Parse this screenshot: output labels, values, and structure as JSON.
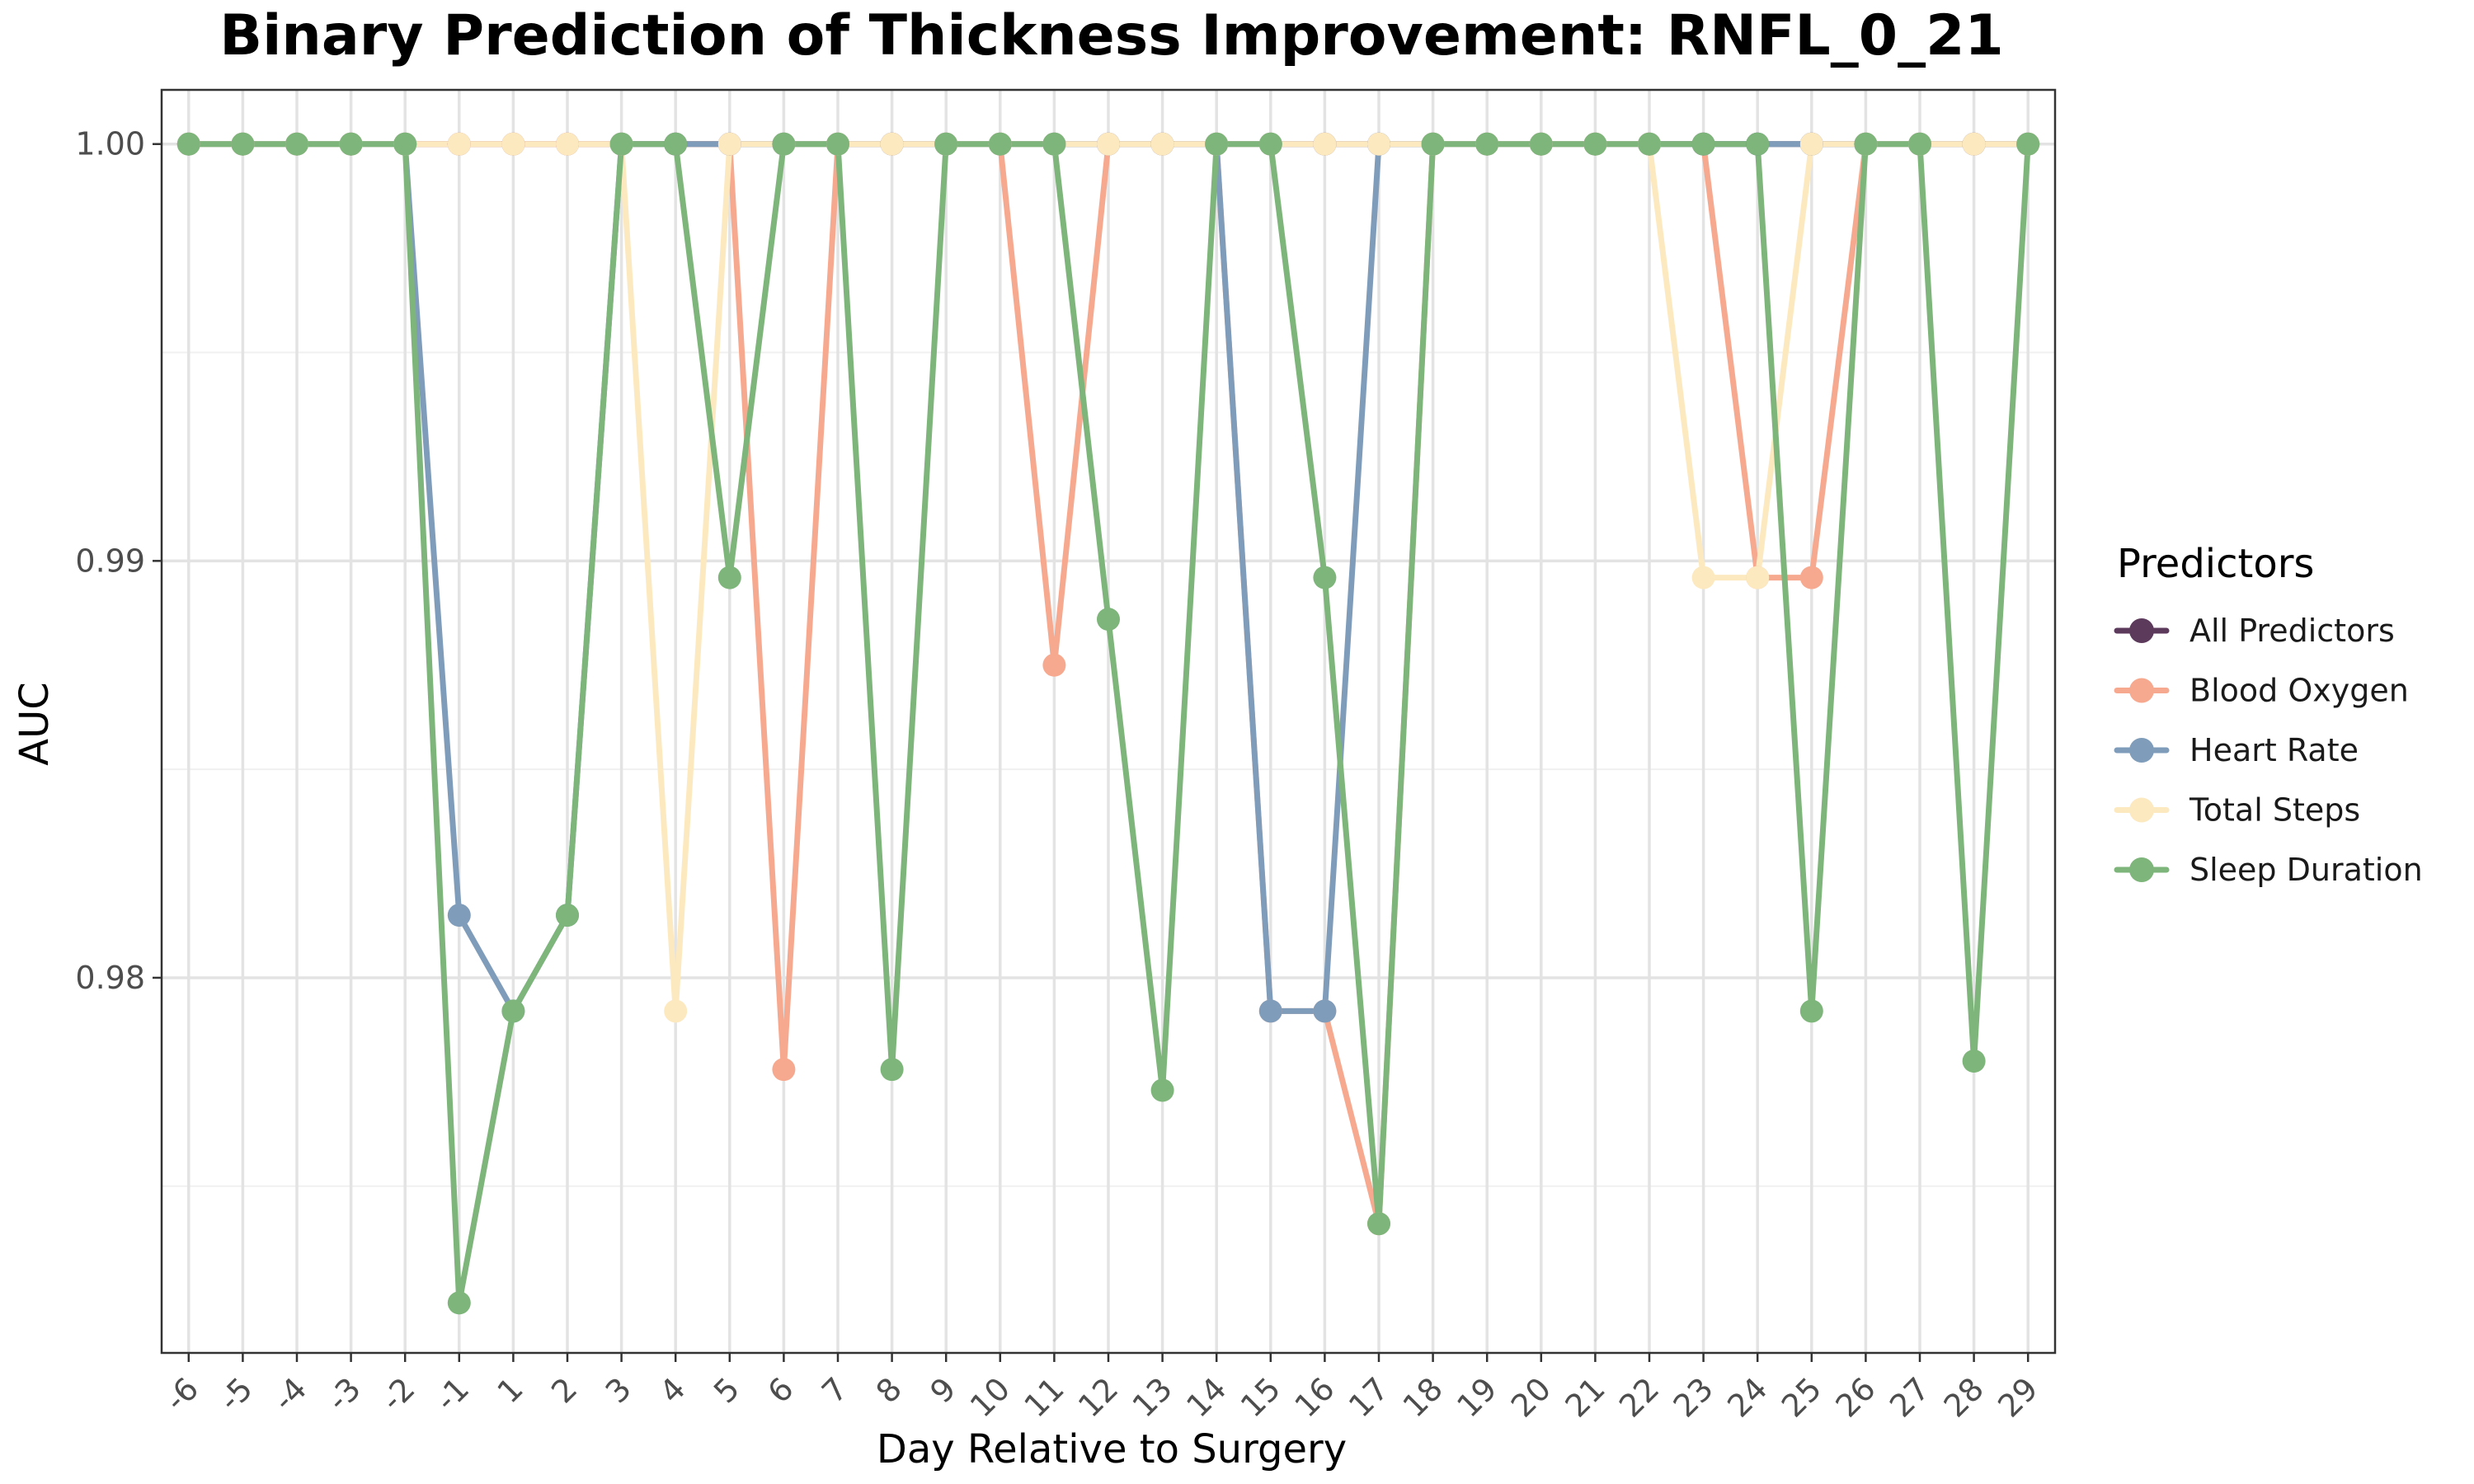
{
  "chart_data": {
    "type": "line",
    "title": "Binary Prediction of Thickness Improvement: RNFL_0_21",
    "xlabel": "Day Relative to Surgery",
    "ylabel": "AUC",
    "categories": [
      "-6",
      "-5",
      "-4",
      "-3",
      "-2",
      "-1",
      "1",
      "2",
      "3",
      "4",
      "5",
      "6",
      "7",
      "8",
      "9",
      "10",
      "11",
      "12",
      "13",
      "14",
      "15",
      "16",
      "17",
      "18",
      "19",
      "20",
      "21",
      "22",
      "23",
      "24",
      "25",
      "26",
      "27",
      "28",
      "29"
    ],
    "ylim": [
      0.971,
      1.0013
    ],
    "yticks": [
      0.98,
      0.99,
      1.0
    ],
    "ytick_labels": [
      "0.98",
      "0.99",
      "1.00"
    ],
    "grid": true,
    "legend": {
      "title": "Predictors",
      "placement": "right",
      "entries": [
        "All Predictors",
        "Blood Oxygen",
        "Heart Rate",
        "Total Steps",
        "Sleep Duration"
      ]
    },
    "series": [
      {
        "name": "All Predictors",
        "color": "#5c3a5c",
        "values": [
          1,
          1,
          1,
          1,
          1,
          1,
          1,
          1,
          1,
          1,
          1,
          1,
          1,
          1,
          1,
          1,
          1,
          1,
          1,
          1,
          1,
          1,
          1,
          1,
          1,
          1,
          1,
          1,
          1,
          1,
          1,
          1,
          1,
          1,
          1
        ]
      },
      {
        "name": "Blood Oxygen",
        "color": "#f7a98f",
        "values": [
          1,
          1,
          1,
          1,
          1,
          1,
          1,
          1,
          1,
          1,
          1,
          0.9778,
          1,
          1,
          1,
          1,
          0.9875,
          1,
          1,
          1,
          0.9792,
          0.9792,
          0.9741,
          1,
          1,
          1,
          1,
          1,
          1,
          0.9896,
          0.9896,
          1,
          1,
          1,
          1
        ]
      },
      {
        "name": "Heart Rate",
        "color": "#7f9dba",
        "values": [
          1,
          1,
          1,
          1,
          1,
          0.9815,
          0.9792,
          0.9815,
          1,
          1,
          1,
          1,
          1,
          1,
          1,
          1,
          1,
          1,
          1,
          1,
          0.9792,
          0.9792,
          1,
          1,
          1,
          1,
          1,
          1,
          1,
          1,
          1,
          1,
          1,
          1,
          1
        ]
      },
      {
        "name": "Total Steps",
        "color": "#fde9c0",
        "values": [
          1,
          1,
          1,
          1,
          1,
          1,
          1,
          1,
          1,
          0.9792,
          1,
          1,
          1,
          1,
          1,
          1,
          1,
          1,
          1,
          1,
          1,
          1,
          1,
          1,
          1,
          1,
          1,
          1,
          0.9896,
          0.9896,
          1,
          1,
          1,
          1,
          1
        ]
      },
      {
        "name": "Sleep Duration",
        "color": "#7db57a",
        "values": [
          1,
          1,
          1,
          1,
          1,
          0.9722,
          0.9792,
          0.9815,
          1,
          1,
          0.9896,
          1,
          1,
          0.9778,
          1,
          1,
          1,
          0.9886,
          0.9773,
          1,
          1,
          0.9896,
          0.9741,
          1,
          1,
          1,
          1,
          1,
          1,
          1,
          0.9792,
          1,
          1,
          0.978,
          1
        ]
      }
    ]
  }
}
